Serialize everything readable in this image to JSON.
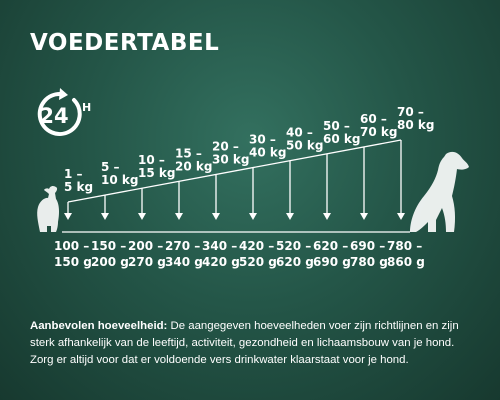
{
  "title": "VOEDERTABEL",
  "badge": {
    "number": "24",
    "unit": "H"
  },
  "weights": [
    {
      "top": "1 –",
      "bottom": "5 kg"
    },
    {
      "top": "5 –",
      "bottom": "10 kg"
    },
    {
      "top": "10 –",
      "bottom": "15 kg"
    },
    {
      "top": "15 –",
      "bottom": "20 kg"
    },
    {
      "top": "20 –",
      "bottom": "30 kg"
    },
    {
      "top": "30 –",
      "bottom": "40 kg"
    },
    {
      "top": "40 –",
      "bottom": "50 kg"
    },
    {
      "top": "50 –",
      "bottom": "60 kg"
    },
    {
      "top": "60 –",
      "bottom": "70 kg"
    },
    {
      "top": "70 –",
      "bottom": "80 kg"
    }
  ],
  "grams": [
    {
      "top": "100 –",
      "bottom": "150 g"
    },
    {
      "top": "150 –",
      "bottom": "200 g"
    },
    {
      "top": "200 –",
      "bottom": "270 g"
    },
    {
      "top": "270 –",
      "bottom": "340 g"
    },
    {
      "top": "340 –",
      "bottom": "420 g"
    },
    {
      "top": "420 –",
      "bottom": "520 g"
    },
    {
      "top": "520 –",
      "bottom": "620 g"
    },
    {
      "top": "620 –",
      "bottom": "690 g"
    },
    {
      "top": "690 –",
      "bottom": "780 g"
    },
    {
      "top": "780 –",
      "bottom": "860 g"
    }
  ],
  "note": {
    "label": "Aanbevolen hoeveelheid:",
    "text": " De aangegeven hoeveelheden voer zijn richtlijnen en zijn sterk afhankelijk van de leeftijd, activiteit, gezondheid en lichaamsbouw van je hond. Zorg er altijd voor dat er voldoende vers drinkwater klaarstaat voor je hond."
  },
  "colors": {
    "text": "#ffffff",
    "background": "#245648"
  },
  "icons": [
    "clock-24h-icon",
    "small-dog-icon",
    "large-dog-icon",
    "arrow-down-icon"
  ]
}
